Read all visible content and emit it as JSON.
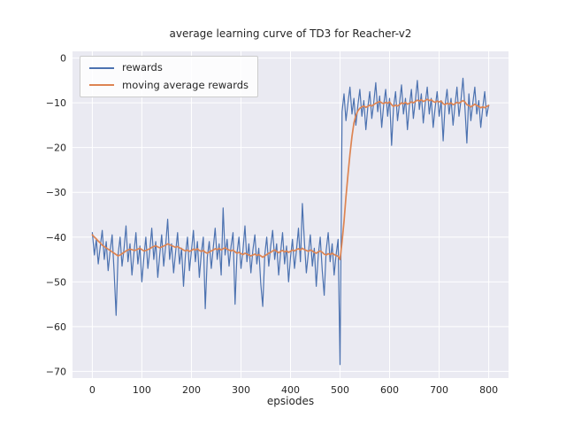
{
  "chart_data": {
    "type": "line",
    "title": "average learning curve of TD3 for Reacher-v2",
    "xlabel": "epsiodes",
    "ylabel": "",
    "grid": true,
    "legend_position": "upper left",
    "x_ticks": [
      0,
      100,
      200,
      300,
      400,
      500,
      600,
      700,
      800
    ],
    "y_ticks": [
      0,
      -10,
      -20,
      -30,
      -40,
      -50,
      -60,
      -70
    ],
    "xlim": [
      -40,
      840
    ],
    "ylim": [
      -71.5,
      1.5
    ],
    "episode_step": 4,
    "series": [
      {
        "name": "rewards",
        "color": "#4c72b0",
        "values": [
          -39,
          -44,
          -40.5,
          -46,
          -42,
          -38.5,
          -45,
          -41,
          -47.5,
          -43,
          -39.5,
          -48,
          -57.5,
          -44,
          -40,
          -46.5,
          -42.5,
          -37.5,
          -45.5,
          -41.5,
          -48.5,
          -43.5,
          -39,
          -46,
          -42,
          -50,
          -44.5,
          -40,
          -47,
          -43,
          -38,
          -45,
          -41,
          -49,
          -44,
          -39.5,
          -46.5,
          -42,
          -36,
          -45,
          -41.5,
          -48,
          -43.5,
          -39,
          -46,
          -42.5,
          -51,
          -44,
          -40,
          -47.5,
          -43,
          -38.5,
          -45.5,
          -41,
          -49,
          -43.5,
          -40,
          -56,
          -44.5,
          -41,
          -47,
          -42.5,
          -38,
          -45,
          -41.5,
          -48.5,
          -33.5,
          -44,
          -40.5,
          -46.5,
          -42,
          -39,
          -55,
          -43.5,
          -40,
          -47,
          -43,
          -37.5,
          -45.5,
          -41.5,
          -48,
          -43,
          -39.5,
          -46,
          -42.5,
          -50.5,
          -55.5,
          -44,
          -40,
          -46.5,
          -42,
          -38.5,
          -45,
          -41.5,
          -48.5,
          -43.5,
          -39,
          -46,
          -42,
          -50,
          -44.5,
          -40.5,
          -47,
          -43,
          -38,
          -45.5,
          -32.5,
          -41,
          -48,
          -43.5,
          -39.5,
          -46.5,
          -42.5,
          -51,
          -44,
          -40,
          -47.5,
          -53,
          -43,
          -39,
          -45.5,
          -41.5,
          -48.5,
          -44,
          -40.5,
          -68.5,
          -12,
          -8,
          -14,
          -10,
          -6.5,
          -12.5,
          -9,
          -15,
          -10.5,
          -7,
          -13,
          -9.5,
          -16,
          -11,
          -7.5,
          -13.5,
          -10,
          -5.5,
          -12,
          -8.5,
          -15.5,
          -10.5,
          -7,
          -13,
          -9,
          -19.5,
          -11,
          -7.5,
          -14,
          -10,
          -6,
          -12.5,
          -9,
          -16,
          -10.5,
          -7,
          -13.5,
          -9.5,
          -5,
          -11.5,
          -8,
          -14.5,
          -10,
          -6.5,
          -12.5,
          -9,
          -15.5,
          -11,
          -7.5,
          -13,
          -9.5,
          -18.5,
          -10.5,
          -7,
          -12.5,
          -9,
          -15,
          -10.5,
          -6.5,
          -13,
          -9.5,
          -4.5,
          -11,
          -19,
          -8,
          -14,
          -10,
          -6.5,
          -12.5,
          -9.5,
          -15.5,
          -11,
          -7.5,
          -13,
          -10.5
        ]
      },
      {
        "name": "moving average rewards",
        "color": "#dd8452",
        "values": [
          -39.5,
          -40,
          -40.4,
          -40.9,
          -41.3,
          -41.8,
          -42.1,
          -42.4,
          -42.7,
          -43,
          -43.3,
          -43.6,
          -43.9,
          -44.2,
          -44,
          -43.7,
          -43.4,
          -43.1,
          -42.9,
          -42.7,
          -42.8,
          -43,
          -42.9,
          -42.7,
          -42.5,
          -42.8,
          -43.1,
          -43,
          -42.8,
          -42.6,
          -42.3,
          -42.1,
          -41.9,
          -42.2,
          -42.4,
          -42.2,
          -42,
          -41.8,
          -41.5,
          -41.7,
          -41.9,
          -42.1,
          -42.3,
          -42.1,
          -42.4,
          -42.6,
          -42.9,
          -43.1,
          -42.9,
          -43.2,
          -43,
          -42.7,
          -42.9,
          -42.6,
          -43,
          -43.2,
          -43,
          -43.4,
          -43.6,
          -43.3,
          -43.1,
          -42.9,
          -42.6,
          -42.8,
          -42.5,
          -42.9,
          -42.6,
          -42.4,
          -42.7,
          -42.9,
          -43.1,
          -42.9,
          -43.3,
          -43.6,
          -43.4,
          -43.7,
          -43.9,
          -43.6,
          -43.8,
          -44,
          -44.2,
          -44,
          -43.8,
          -44.1,
          -43.9,
          -44.2,
          -44.5,
          -44.2,
          -43.9,
          -43.6,
          -43.4,
          -43.1,
          -42.9,
          -43.2,
          -43.5,
          -43.2,
          -43,
          -43.3,
          -43.1,
          -43.4,
          -43.2,
          -42.9,
          -43.1,
          -42.8,
          -42.6,
          -42.9,
          -42.5,
          -42.8,
          -43,
          -43.2,
          -42.9,
          -43.1,
          -43.4,
          -43.6,
          -43.3,
          -43.1,
          -43.4,
          -43.8,
          -44,
          -43.7,
          -43.9,
          -43.6,
          -43.9,
          -44.1,
          -44.3,
          -45,
          -41,
          -36.5,
          -31,
          -26,
          -21.5,
          -17.5,
          -14.5,
          -12.8,
          -11.8,
          -11.2,
          -10.9,
          -10.7,
          -11,
          -10.8,
          -10.5,
          -10.7,
          -10.4,
          -10.1,
          -9.9,
          -9.7,
          -10,
          -10.2,
          -9.9,
          -10.1,
          -9.8,
          -10.4,
          -10.8,
          -10.5,
          -10.7,
          -10.4,
          -10,
          -10.2,
          -9.9,
          -10.3,
          -10.1,
          -9.8,
          -10,
          -9.7,
          -9.4,
          -9.6,
          -9.3,
          -9.7,
          -9.5,
          -9.2,
          -9.5,
          -9.3,
          -9.7,
          -9.9,
          -9.6,
          -9.8,
          -9.6,
          -10.2,
          -10.4,
          -10.1,
          -10.3,
          -10,
          -10.4,
          -10.2,
          -9.9,
          -10.1,
          -9.8,
          -9.5,
          -9.8,
          -10.4,
          -10.6,
          -10.9,
          -10.6,
          -10.3,
          -10.6,
          -10.8,
          -11.1,
          -10.9,
          -11.1,
          -10.8,
          -10.6
        ]
      }
    ]
  },
  "colors": {
    "figure_bg": "#ffffff",
    "plot_bg": "#eaeaf2",
    "grid": "#ffffff",
    "text": "#262626",
    "rewards_line": "#4c72b0",
    "moving_average_line": "#dd8452"
  }
}
